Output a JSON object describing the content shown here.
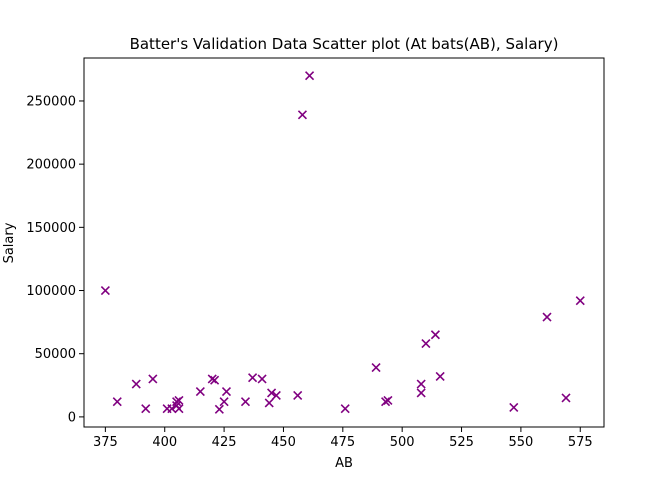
{
  "chart_data": {
    "type": "scatter",
    "title": "Batter's Validation Data Scatter plot (At bats(AB), Salary)",
    "xlabel": "AB",
    "ylabel": "Salary",
    "xlim": [
      366,
      585
    ],
    "ylim": [
      -8000,
      284000
    ],
    "xticks": [
      375,
      400,
      425,
      450,
      475,
      500,
      525,
      550,
      575
    ],
    "yticks": [
      0,
      50000,
      100000,
      150000,
      200000,
      250000
    ],
    "marker": "x",
    "color": "#800080",
    "grid": false,
    "series": [
      {
        "x": [
          375,
          380,
          388,
          392,
          395,
          401,
          403,
          405,
          405,
          406,
          406,
          415,
          420,
          421,
          423,
          425,
          426,
          434,
          437,
          441,
          444,
          445,
          447,
          456,
          458,
          461,
          476,
          489,
          493,
          494,
          508,
          508,
          510,
          514,
          516,
          547,
          561,
          569,
          575
        ],
        "y": [
          100000,
          12000,
          26000,
          6500,
          30000,
          6500,
          6500,
          9000,
          12000,
          6500,
          13000,
          20000,
          30000,
          29000,
          6000,
          12000,
          20000,
          12000,
          31000,
          30000,
          11000,
          19000,
          17000,
          17000,
          239000,
          270000,
          6500,
          39000,
          12000,
          13000,
          26000,
          19000,
          58000,
          65000,
          32000,
          7500,
          79000,
          15000,
          92000
        ]
      }
    ]
  }
}
